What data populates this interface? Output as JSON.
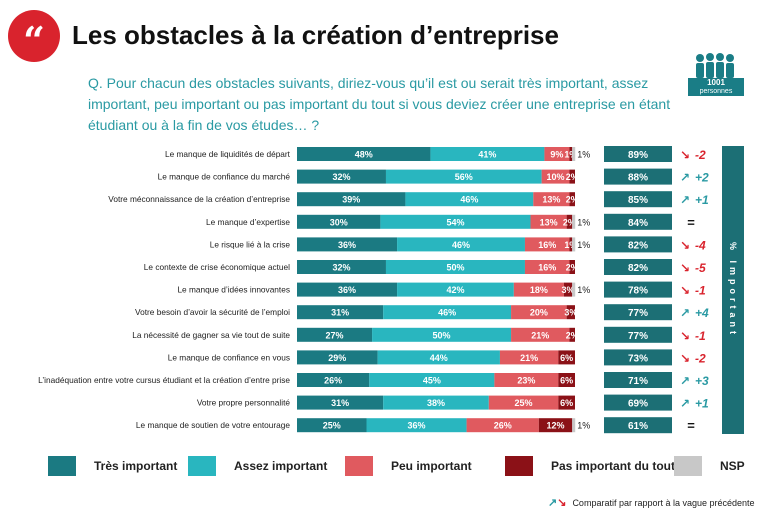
{
  "title": "Les obstacles à la création d’entreprise",
  "question": "Q. Pour chacun des obstacles suivants, diriez-vous qu’il est ou serait très important, assez important, peu important ou pas important du tout si vous deviez créer une entreprise en étant étudiant ou à la fin de vos études… ?",
  "sample": {
    "count": "1001",
    "label": "personnes"
  },
  "side_label": "% Important",
  "legend": [
    {
      "label": "Très important",
      "color": "#1b7a82"
    },
    {
      "label": "Assez important",
      "color": "#29b6bf"
    },
    {
      "label": "Peu important",
      "color": "#e05a5f"
    },
    {
      "label": "Pas important du tout",
      "color": "#8b1117"
    },
    {
      "label": "NSP",
      "color": "#c8c8c8"
    }
  ],
  "trend_note": "Comparatif par rapport à la vague précédente",
  "colors": {
    "up": "#2a9aa3",
    "down": "#d9232d",
    "total_box": "#1c6f75",
    "quote_badge": "#d9232d"
  },
  "chart_data": {
    "type": "bar",
    "stacked": true,
    "orientation": "horizontal",
    "categories": [
      "Le manque de liquidités de départ",
      "Le manque de confiance du marché",
      "Votre méconnaissance de la création d’entreprise",
      "Le manque d’expertise",
      "Le risque lié à la crise",
      "Le contexte de crise économique actuel",
      "Le manque d’idées innovantes",
      "Votre besoin d’avoir la sécurité de l’emploi",
      "La nécessité de gagner sa vie tout de suite",
      "Le manque de confiance en vous",
      "L’inadéquation entre votre cursus étudiant et la création d’entre prise",
      "Votre propre personnalité",
      "Le manque de soutien de votre entourage"
    ],
    "series": [
      {
        "name": "Très important",
        "values": [
          48,
          32,
          39,
          30,
          36,
          32,
          36,
          31,
          27,
          29,
          26,
          31,
          25
        ]
      },
      {
        "name": "Assez important",
        "values": [
          41,
          56,
          46,
          54,
          46,
          50,
          42,
          46,
          50,
          44,
          45,
          38,
          36
        ]
      },
      {
        "name": "Peu important",
        "values": [
          9,
          10,
          13,
          13,
          16,
          16,
          18,
          20,
          21,
          21,
          23,
          25,
          26
        ]
      },
      {
        "name": "Pas important du tout",
        "values": [
          1,
          2,
          2,
          2,
          1,
          2,
          3,
          3,
          2,
          6,
          6,
          6,
          12
        ]
      },
      {
        "name": "NSP",
        "values": [
          1,
          0,
          0,
          1,
          1,
          0,
          1,
          0,
          0,
          0,
          0,
          0,
          1
        ]
      }
    ],
    "important_total": [
      "89%",
      "88%",
      "85%",
      "84%",
      "82%",
      "82%",
      "78%",
      "77%",
      "77%",
      "73%",
      "71%",
      "69%",
      "61%"
    ],
    "trend": [
      {
        "dir": "down",
        "text": "-2"
      },
      {
        "dir": "up",
        "text": "+2"
      },
      {
        "dir": "up",
        "text": "+1"
      },
      {
        "dir": "eq",
        "text": "="
      },
      {
        "dir": "down",
        "text": "-4"
      },
      {
        "dir": "down",
        "text": "-5"
      },
      {
        "dir": "down",
        "text": "-1"
      },
      {
        "dir": "up",
        "text": "+4"
      },
      {
        "dir": "down",
        "text": "-1"
      },
      {
        "dir": "down",
        "text": "-2"
      },
      {
        "dir": "up",
        "text": "+3"
      },
      {
        "dir": "up",
        "text": "+1"
      },
      {
        "dir": "eq",
        "text": "="
      }
    ],
    "xlim": [
      0,
      100
    ]
  }
}
